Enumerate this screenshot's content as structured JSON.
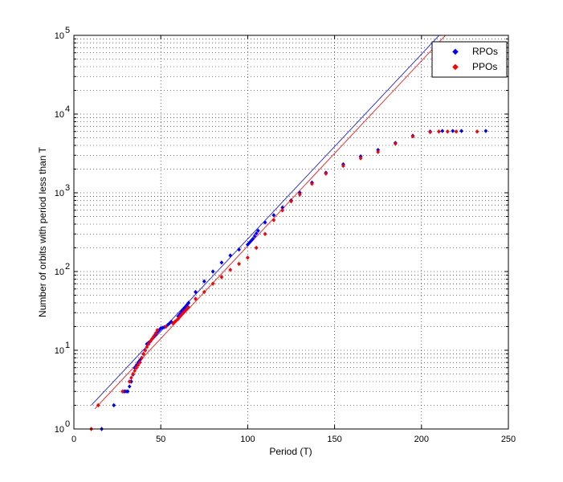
{
  "chart_data": {
    "type": "scatter",
    "title": "",
    "xlabel": "Period (T)",
    "ylabel": "Number of orbits with period less than T",
    "xlim": [
      0,
      250
    ],
    "ylim": [
      1,
      100000
    ],
    "yscale": "log",
    "grid": "dotted-major-and-minor-y",
    "legend_position": "top-right",
    "x_ticks": [
      "0",
      "50",
      "100",
      "150",
      "200",
      "250"
    ],
    "y_ticks": [
      {
        "base": "10",
        "exp": "0"
      },
      {
        "base": "10",
        "exp": "1"
      },
      {
        "base": "10",
        "exp": "2"
      },
      {
        "base": "10",
        "exp": "3"
      },
      {
        "base": "10",
        "exp": "4"
      },
      {
        "base": "10",
        "exp": "5"
      }
    ],
    "series": [
      {
        "name": "RPOs",
        "color": "#0000ff",
        "points": [
          [
            16,
            1
          ],
          [
            23,
            2
          ],
          [
            29,
            3
          ],
          [
            31,
            3
          ],
          [
            33,
            4
          ],
          [
            35,
            6
          ],
          [
            37,
            7
          ],
          [
            39,
            8
          ],
          [
            41,
            10
          ],
          [
            42,
            12
          ],
          [
            44,
            13
          ],
          [
            46,
            15
          ],
          [
            48,
            17
          ],
          [
            50,
            19
          ],
          [
            53,
            20
          ],
          [
            56,
            23
          ],
          [
            60,
            27
          ],
          [
            63,
            33
          ],
          [
            66,
            40
          ],
          [
            70,
            55
          ],
          [
            75,
            75
          ],
          [
            80,
            100
          ],
          [
            85,
            130
          ],
          [
            90,
            160
          ],
          [
            95,
            190
          ],
          [
            100,
            220
          ],
          [
            103,
            260
          ],
          [
            106,
            330
          ],
          [
            110,
            420
          ],
          [
            115,
            520
          ],
          [
            120,
            650
          ],
          [
            125,
            800
          ],
          [
            130,
            1000
          ],
          [
            137,
            1350
          ],
          [
            145,
            1800
          ],
          [
            155,
            2300
          ],
          [
            165,
            2900
          ],
          [
            175,
            3500
          ],
          [
            185,
            4300
          ],
          [
            195,
            5300
          ],
          [
            205,
            6000
          ],
          [
            212,
            6100
          ],
          [
            218,
            6100
          ],
          [
            223,
            6100
          ],
          [
            237,
            6100
          ]
        ],
        "fit": [
          [
            10,
            2
          ],
          [
            220,
            170000
          ]
        ]
      },
      {
        "name": "PPOs",
        "color": "#ff0000",
        "points": [
          [
            10,
            1
          ],
          [
            14,
            2
          ],
          [
            28,
            3
          ],
          [
            32,
            4
          ],
          [
            34,
            5
          ],
          [
            36,
            6
          ],
          [
            38,
            7
          ],
          [
            40,
            9
          ],
          [
            42,
            11
          ],
          [
            44,
            13
          ],
          [
            46,
            15
          ],
          [
            48,
            18
          ],
          [
            53,
            20
          ],
          [
            57,
            22
          ],
          [
            60,
            25
          ],
          [
            63,
            30
          ],
          [
            66,
            35
          ],
          [
            70,
            45
          ],
          [
            75,
            55
          ],
          [
            80,
            70
          ],
          [
            85,
            85
          ],
          [
            90,
            105
          ],
          [
            95,
            125
          ],
          [
            100,
            150
          ],
          [
            105,
            200
          ],
          [
            110,
            300
          ],
          [
            115,
            450
          ],
          [
            120,
            600
          ],
          [
            125,
            780
          ],
          [
            130,
            950
          ],
          [
            137,
            1300
          ],
          [
            145,
            1750
          ],
          [
            155,
            2200
          ],
          [
            165,
            2750
          ],
          [
            175,
            3300
          ],
          [
            185,
            4200
          ],
          [
            195,
            5200
          ],
          [
            205,
            5900
          ],
          [
            210,
            6000
          ],
          [
            215,
            6000
          ],
          [
            220,
            6000
          ],
          [
            232,
            6000
          ]
        ],
        "fit": [
          [
            12,
            1.8
          ],
          [
            220,
            140000
          ]
        ]
      }
    ]
  }
}
